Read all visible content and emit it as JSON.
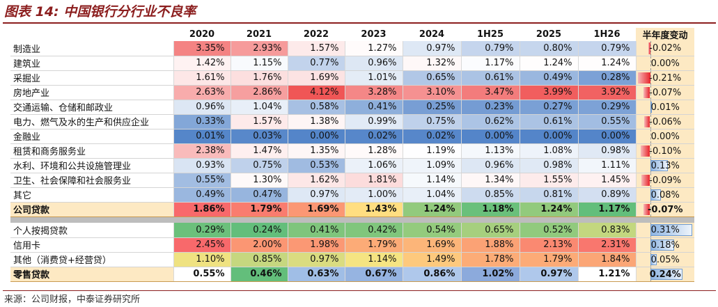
{
  "title": "图表 14: 中国银行分行业不良率",
  "source": "来源：公司财报，中泰证券研究所",
  "colors": {
    "title": "#8b1d1d",
    "change_bg": "#fde9c3",
    "neg_bar": "#e8242a",
    "pos_bar": "#8db4e2"
  },
  "chart_data": {
    "type": "table",
    "title": "图表 14: 中国银行分行业不良率",
    "columns": [
      "2020",
      "2021",
      "2022",
      "2023",
      "2024",
      "1H25",
      "2025",
      "1H26",
      "半年度变动"
    ],
    "groups": [
      {
        "rows": [
          {
            "label": "制造业",
            "values": [
              "3.35%",
              "2.93%",
              "1.57%",
              "1.27%",
              "0.97%",
              "0.79%",
              "0.80%",
              "0.79%"
            ],
            "change": "-0.02%",
            "change_value": -0.02
          },
          {
            "label": "建筑业",
            "values": [
              "1.42%",
              "1.15%",
              "0.77%",
              "0.96%",
              "1.32%",
              "1.17%",
              "1.24%",
              "1.24%"
            ],
            "change": "0.00%",
            "change_value": 0.0
          },
          {
            "label": "采掘业",
            "values": [
              "1.61%",
              "1.76%",
              "1.69%",
              "1.01%",
              "0.65%",
              "0.61%",
              "0.49%",
              "0.28%"
            ],
            "change": "-0.21%",
            "change_value": -0.21
          },
          {
            "label": "房地产业",
            "values": [
              "2.63%",
              "2.86%",
              "4.12%",
              "3.28%",
              "3.10%",
              "3.47%",
              "3.99%",
              "3.92%"
            ],
            "change": "-0.07%",
            "change_value": -0.07
          },
          {
            "label": "交通运输、仓储和邮政业",
            "values": [
              "0.96%",
              "1.04%",
              "0.58%",
              "0.41%",
              "0.25%",
              "0.23%",
              "0.27%",
              "0.29%"
            ],
            "change": "0.01%",
            "change_value": 0.01
          },
          {
            "label": "电力、燃气及水的生产和供应企业",
            "values": [
              "0.33%",
              "1.57%",
              "1.38%",
              "0.99%",
              "0.75%",
              "0.62%",
              "0.61%",
              "0.55%"
            ],
            "change": "-0.06%",
            "change_value": -0.06
          },
          {
            "label": "金融业",
            "values": [
              "0.01%",
              "0.03%",
              "0.00%",
              "0.02%",
              "0.02%",
              "0.00%",
              "0.00%",
              "0.00%"
            ],
            "change": "0.00%",
            "change_value": 0.0
          },
          {
            "label": "租赁和商务服务业",
            "values": [
              "2.38%",
              "1.47%",
              "1.35%",
              "1.28%",
              "1.19%",
              "1.13%",
              "1.08%",
              "0.98%"
            ],
            "change": "-0.10%",
            "change_value": -0.1
          },
          {
            "label": "水利、环境和公共设施管理业",
            "values": [
              "0.93%",
              "0.75%",
              "0.53%",
              "1.06%",
              "1.09%",
              "0.96%",
              "0.98%",
              "1.11%"
            ],
            "change": "0.13%",
            "change_value": 0.13
          },
          {
            "label": "卫生、社会保障和社会服务业",
            "values": [
              "0.55%",
              "1.30%",
              "1.62%",
              "1.81%",
              "1.14%",
              "1.34%",
              "1.55%",
              "1.45%"
            ],
            "change": "-0.09%",
            "change_value": -0.09
          },
          {
            "label": "其它",
            "values": [
              "0.49%",
              "0.47%",
              "0.97%",
              "1.00%",
              "1.04%",
              "0.85%",
              "0.81%",
              "0.89%"
            ],
            "change": "0.08%",
            "change_value": 0.08
          }
        ],
        "subtotal": {
          "label": "公司贷款",
          "values": [
            "1.86%",
            "1.79%",
            "1.69%",
            "1.43%",
            "1.24%",
            "1.18%",
            "1.24%",
            "1.17%"
          ],
          "change": "-0.07%",
          "change_value": -0.07
        }
      },
      {
        "rows": [
          {
            "label": "个人按揭贷款",
            "values": [
              "0.29%",
              "0.24%",
              "0.41%",
              "0.42%",
              "0.54%",
              "0.65%",
              "0.52%",
              "0.83%"
            ],
            "change": "0.31%",
            "change_value": 0.31
          },
          {
            "label": "信用卡",
            "values": [
              "2.45%",
              "2.00%",
              "1.98%",
              "1.79%",
              "1.69%",
              "1.88%",
              "2.13%",
              "2.31%"
            ],
            "change": "0.18%",
            "change_value": 0.18
          },
          {
            "label": "其他（消费贷+经营贷）",
            "values": [
              "1.10%",
              "0.85%",
              "0.97%",
              "1.14%",
              "1.49%",
              "1.78%",
              "1.79%",
              "1.84%"
            ],
            "change": "0.05%",
            "change_value": 0.05
          }
        ],
        "subtotal": {
          "label": "零售贷款",
          "values": [
            "0.55%",
            "0.46%",
            "0.63%",
            "0.67%",
            "0.86%",
            "1.02%",
            "0.97%",
            "1.21%"
          ],
          "change": "0.24%",
          "change_value": 0.24
        }
      }
    ]
  }
}
